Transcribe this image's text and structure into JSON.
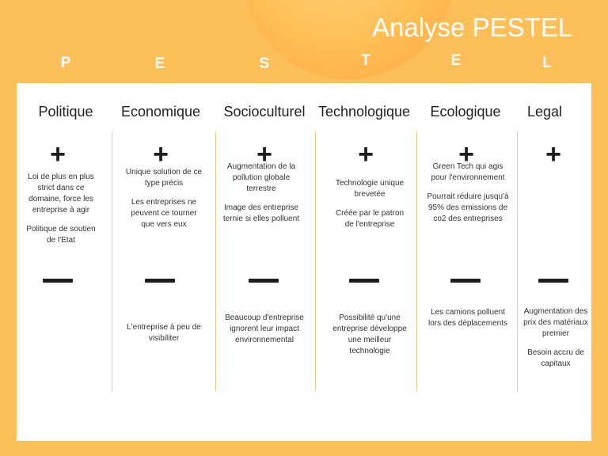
{
  "title": "Analyse PESTEL",
  "letters": [
    "P",
    "E",
    "S",
    "T",
    "E",
    "L"
  ],
  "columns": [
    {
      "title": "Politique",
      "plus": [
        "Loi de plus en plus strict dans ce domaine, force les entreprise à agir",
        "Politique de soutien de l'Etat"
      ],
      "minus": []
    },
    {
      "title": "Economique",
      "plus": [
        "Unique solution de ce type précis",
        "Les entreprises ne peuvent ce tourner que vers eux"
      ],
      "minus": [
        "L'entreprise à peu de visibiliter"
      ]
    },
    {
      "title": "Socioculturel",
      "plus": [
        "Augmentation de la pollution globale terrestre",
        "Image des entreprise ternie si elles polluent"
      ],
      "minus": [
        "Beaucoup d'entreprise ignorent leur impact environnemental"
      ]
    },
    {
      "title": "Technologique",
      "plus": [
        "Technologie unique brevetée",
        "Créée par le patron de l'entreprise"
      ],
      "minus": [
        "Possibilité qu'une entreprise développe une meilleur technologie"
      ]
    },
    {
      "title": "Ecologique",
      "plus": [
        "Green Tech qui agis pour l'environnement",
        "Pourrait réduire jusqu'à 95% des emissions de co2 des entreprises"
      ],
      "minus": [
        "Les camions polluent lors des déplacements"
      ]
    },
    {
      "title": "Legal",
      "plus": [],
      "minus": [
        "Augmentation des prix des matériaux premier",
        "Besoin accru de capitaux"
      ]
    }
  ],
  "icons": {
    "plus": "plus-icon",
    "minus": "minus-icon"
  }
}
